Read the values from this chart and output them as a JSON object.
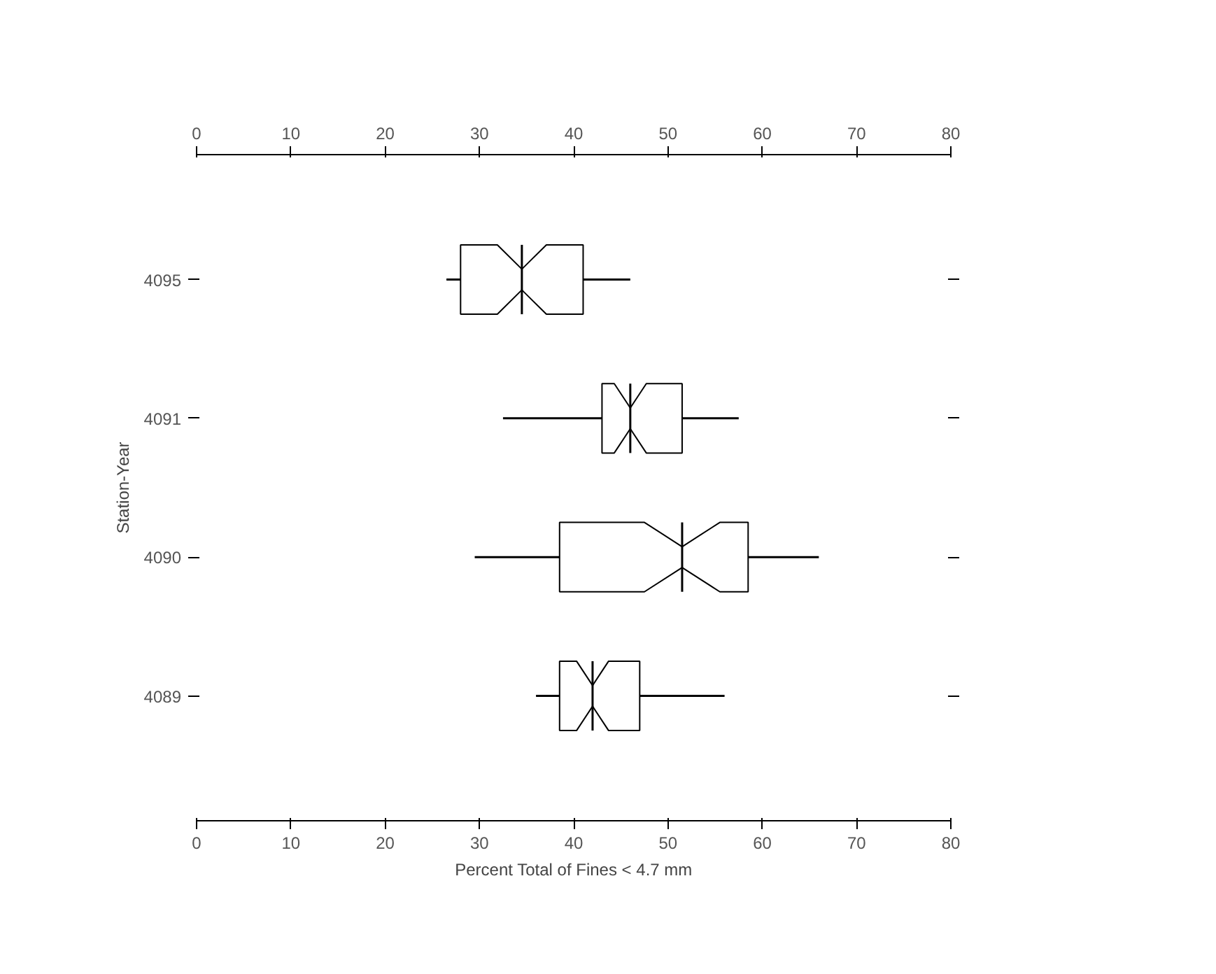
{
  "chart_data": {
    "type": "box",
    "orientation": "horizontal",
    "xlabel": "Percent Total of Fines < 4.7 mm",
    "ylabel": "Station-Year",
    "categories": [
      "4095",
      "4091",
      "4090",
      "4089"
    ],
    "boxes": [
      {
        "low": 26.5,
        "q1": 28,
        "median": 34.5,
        "q3": 41,
        "high": 46
      },
      {
        "low": 32.5,
        "q1": 43,
        "median": 46,
        "q3": 51.5,
        "high": 57.5
      },
      {
        "low": 29.5,
        "q1": 38.5,
        "median": 51.5,
        "q3": 58.5,
        "high": 66
      },
      {
        "low": 36,
        "q1": 38.5,
        "median": 42,
        "q3": 47,
        "high": 56
      }
    ],
    "color": "#000000",
    "xlim": [
      0,
      80
    ],
    "xticks": [
      0,
      10,
      20,
      30,
      40,
      50,
      60,
      70,
      80
    ],
    "x2lim": [
      0,
      80
    ],
    "x2ticks": [
      0,
      10,
      20,
      30,
      40,
      50,
      60,
      70,
      80
    ],
    "grid": false
  }
}
